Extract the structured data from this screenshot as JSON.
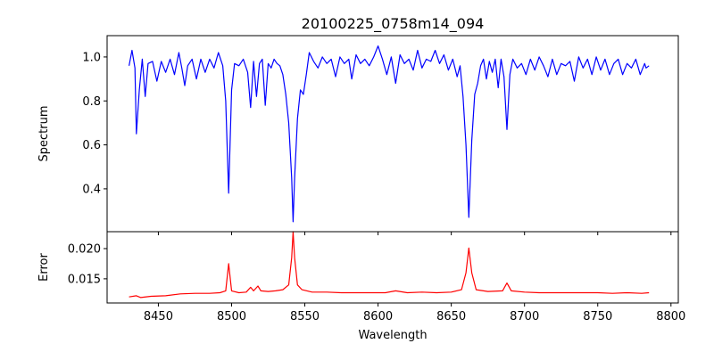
{
  "chart_data": [
    {
      "type": "line",
      "title": "20100225_0758m14_094",
      "xlabel": "",
      "ylabel": "Spectrum",
      "xlim": [
        8415,
        8805
      ],
      "ylim": [
        0.205,
        1.097
      ],
      "yticks": [
        0.4,
        0.6,
        0.8,
        1.0
      ],
      "ytick_labels": [
        "0.4",
        "0.6",
        "0.8",
        "1.0"
      ],
      "color": "#0000ff",
      "x": [
        8430,
        8432,
        8434,
        8435,
        8437,
        8439,
        8441,
        8443,
        8446,
        8449,
        8452,
        8455,
        8458,
        8461,
        8464,
        8466,
        8468,
        8470,
        8473,
        8476,
        8479,
        8482,
        8485,
        8488,
        8491,
        8494,
        8496,
        8498,
        8500,
        8502,
        8505,
        8508,
        8511,
        8513,
        8515,
        8517,
        8519,
        8521,
        8523,
        8525,
        8527,
        8529,
        8531,
        8533,
        8535,
        8537,
        8539,
        8541,
        8542,
        8543,
        8545,
        8547,
        8549,
        8551,
        8553,
        8556,
        8559,
        8562,
        8565,
        8568,
        8571,
        8574,
        8577,
        8580,
        8582,
        8585,
        8588,
        8591,
        8594,
        8597,
        8600,
        8603,
        8606,
        8609,
        8612,
        8615,
        8618,
        8621,
        8624,
        8627,
        8630,
        8633,
        8636,
        8639,
        8642,
        8645,
        8648,
        8651,
        8654,
        8656,
        8658,
        8660,
        8662,
        8664,
        8666,
        8668,
        8670,
        8672,
        8674,
        8676,
        8678,
        8680,
        8682,
        8684,
        8686,
        8688,
        8690,
        8692,
        8695,
        8698,
        8701,
        8704,
        8707,
        8710,
        8713,
        8716,
        8719,
        8722,
        8725,
        8728,
        8731,
        8734,
        8737,
        8740,
        8743,
        8746,
        8749,
        8752,
        8755,
        8758,
        8761,
        8764,
        8767,
        8770,
        8773,
        8776,
        8779,
        8782,
        8783,
        8785
      ],
      "y": [
        0.96,
        1.03,
        0.95,
        0.65,
        0.85,
        0.99,
        0.82,
        0.97,
        0.98,
        0.89,
        0.98,
        0.93,
        0.99,
        0.92,
        1.02,
        0.95,
        0.87,
        0.96,
        0.99,
        0.9,
        0.99,
        0.93,
        0.99,
        0.95,
        1.02,
        0.96,
        0.8,
        0.38,
        0.85,
        0.97,
        0.96,
        0.99,
        0.93,
        0.77,
        0.98,
        0.82,
        0.97,
        0.99,
        0.78,
        0.97,
        0.95,
        0.99,
        0.97,
        0.96,
        0.92,
        0.83,
        0.7,
        0.45,
        0.25,
        0.45,
        0.72,
        0.85,
        0.83,
        0.92,
        1.02,
        0.98,
        0.95,
        1.0,
        0.97,
        0.99,
        0.91,
        1.0,
        0.97,
        0.99,
        0.9,
        1.01,
        0.97,
        0.99,
        0.96,
        1.0,
        1.05,
        0.99,
        0.92,
        1.0,
        0.88,
        1.01,
        0.97,
        0.99,
        0.94,
        1.03,
        0.95,
        0.99,
        0.98,
        1.03,
        0.97,
        1.01,
        0.94,
        0.99,
        0.91,
        0.96,
        0.82,
        0.6,
        0.27,
        0.62,
        0.83,
        0.88,
        0.96,
        0.99,
        0.9,
        0.98,
        0.93,
        0.99,
        0.86,
        0.99,
        0.91,
        0.67,
        0.92,
        0.99,
        0.95,
        0.97,
        0.92,
        0.99,
        0.94,
        1.0,
        0.96,
        0.91,
        0.99,
        0.92,
        0.97,
        0.96,
        0.98,
        0.89,
        1.0,
        0.95,
        0.99,
        0.92,
        1.0,
        0.94,
        0.99,
        0.92,
        0.97,
        0.99,
        0.92,
        0.97,
        0.95,
        0.99,
        0.92,
        0.97,
        0.95,
        0.96
      ]
    },
    {
      "type": "line",
      "title": "",
      "xlabel": "Wavelength",
      "ylabel": "Error",
      "xlim": [
        8415,
        8805
      ],
      "ylim": [
        0.011,
        0.0228
      ],
      "xticks": [
        8450,
        8500,
        8550,
        8600,
        8650,
        8700,
        8750,
        8800
      ],
      "xtick_labels": [
        "8450",
        "8500",
        "8550",
        "8600",
        "8650",
        "8700",
        "8750",
        "8800"
      ],
      "yticks": [
        0.015,
        0.02
      ],
      "ytick_labels": [
        "0.015",
        "0.020"
      ],
      "color": "#ff0000",
      "x": [
        8430,
        8435,
        8438,
        8445,
        8455,
        8465,
        8475,
        8485,
        8492,
        8496,
        8498,
        8500,
        8505,
        8510,
        8513,
        8515,
        8518,
        8520,
        8525,
        8530,
        8535,
        8539,
        8541,
        8542,
        8543,
        8545,
        8548,
        8555,
        8565,
        8575,
        8585,
        8595,
        8605,
        8612,
        8620,
        8630,
        8640,
        8650,
        8657,
        8660,
        8662,
        8664,
        8667,
        8675,
        8685,
        8688,
        8691,
        8700,
        8710,
        8720,
        8730,
        8740,
        8750,
        8760,
        8770,
        8780,
        8785
      ],
      "y": [
        0.012,
        0.0122,
        0.0119,
        0.0121,
        0.0122,
        0.0125,
        0.0126,
        0.0126,
        0.0127,
        0.013,
        0.0175,
        0.013,
        0.0127,
        0.0128,
        0.0136,
        0.013,
        0.0138,
        0.013,
        0.0129,
        0.013,
        0.0132,
        0.014,
        0.0185,
        0.0228,
        0.0185,
        0.014,
        0.0132,
        0.0128,
        0.0128,
        0.0127,
        0.0127,
        0.0127,
        0.0127,
        0.013,
        0.0127,
        0.0128,
        0.0127,
        0.0128,
        0.0132,
        0.016,
        0.0201,
        0.016,
        0.0132,
        0.0129,
        0.013,
        0.0143,
        0.013,
        0.0128,
        0.0127,
        0.0127,
        0.0127,
        0.0127,
        0.0127,
        0.0126,
        0.0127,
        0.0126,
        0.0127
      ]
    }
  ]
}
